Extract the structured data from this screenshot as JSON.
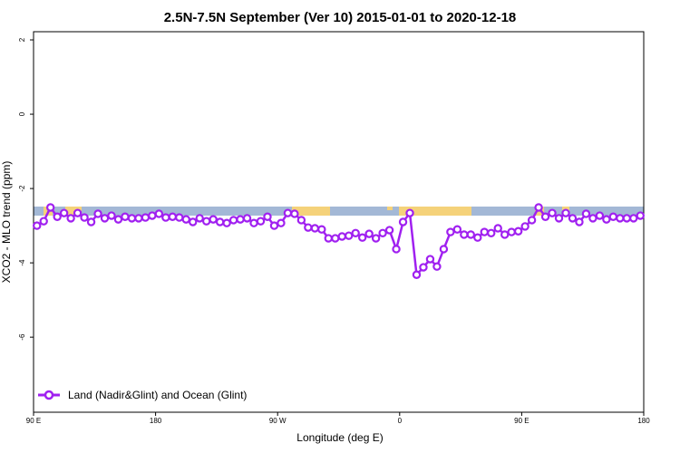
{
  "chart_data": {
    "type": "line",
    "title": "2.5N-7.5N September (Ver 10)   2015-01-01 to 2020-12-18",
    "x_label": "Longitude (deg E)",
    "y_label": "XCO2 - MLO trend (ppm)",
    "legend": "bottom-left",
    "xlim": [
      90,
      540
    ],
    "ylim": [
      -8.02,
      2.22
    ],
    "xticks": [
      {
        "value": 90,
        "label": "90 E"
      },
      180,
      {
        "value": 270,
        "label": "90 W"
      },
      {
        "value": 360,
        "label": "0"
      },
      {
        "value": 450,
        "label": "90 E"
      },
      {
        "value": 540,
        "label": "180"
      }
    ],
    "yticks": [
      2,
      0,
      -2,
      -4,
      -6
    ],
    "x": [
      92.5,
      97.5,
      102.5,
      107.5,
      112.5,
      117.5,
      122.5,
      127.5,
      132.5,
      137.5,
      142.5,
      147.5,
      152.5,
      157.5,
      162.5,
      167.5,
      172.5,
      177.5,
      182.5,
      187.5,
      192.5,
      197.5,
      202.5,
      207.5,
      212.5,
      217.5,
      222.5,
      227.5,
      232.5,
      237.5,
      242.5,
      247.5,
      252.5,
      257.5,
      262.5,
      267.5,
      272.5,
      277.5,
      282.5,
      287.5,
      292.5,
      297.5,
      302.5,
      307.5,
      312.5,
      317.5,
      322.5,
      327.5,
      332.5,
      337.5,
      342.5,
      347.5,
      352.5,
      357.5,
      362.5,
      367.5,
      372.5,
      377.5,
      382.5,
      387.5,
      392.5,
      397.5,
      402.5,
      407.5,
      412.5,
      417.5,
      422.5,
      427.5,
      432.5,
      437.5,
      442.5,
      447.5,
      452.5,
      457.5,
      462.5,
      467.5,
      472.5,
      477.5,
      482.5,
      487.5,
      492.5,
      497.5,
      502.5,
      507.5,
      512.5,
      517.5,
      522.5,
      527.5,
      532.5,
      537.5
    ],
    "series": [
      {
        "name": "Land (Nadir&Glint) and Ocean (Glint)",
        "color": "#a020f0",
        "values": [
          -3.0,
          -2.88,
          -2.51,
          -2.76,
          -2.66,
          -2.8,
          -2.66,
          -2.78,
          -2.9,
          -2.68,
          -2.8,
          -2.73,
          -2.83,
          -2.76,
          -2.8,
          -2.8,
          -2.78,
          -2.73,
          -2.68,
          -2.78,
          -2.76,
          -2.78,
          -2.83,
          -2.9,
          -2.8,
          -2.88,
          -2.83,
          -2.9,
          -2.93,
          -2.85,
          -2.83,
          -2.8,
          -2.93,
          -2.88,
          -2.76,
          -3.0,
          -2.93,
          -2.66,
          -2.68,
          -2.85,
          -3.05,
          -3.07,
          -3.1,
          -3.34,
          -3.34,
          -3.29,
          -3.27,
          -3.2,
          -3.32,
          -3.22,
          -3.34,
          -3.2,
          -3.12,
          -3.63,
          -2.9,
          -2.66,
          -4.32,
          -4.12,
          -3.9,
          -4.1,
          -3.63,
          -3.17,
          -3.1,
          -3.24,
          -3.24,
          -3.32,
          -3.17,
          -3.2,
          -3.07,
          -3.24,
          -3.17,
          -3.15,
          -3.02,
          -2.85,
          -2.51,
          -2.76,
          -2.66,
          -2.8,
          -2.66,
          -2.8,
          -2.9,
          -2.68,
          -2.8,
          -2.73,
          -2.83,
          -2.76,
          -2.8,
          -2.8,
          -2.8,
          -2.73
        ]
      }
    ]
  }
}
